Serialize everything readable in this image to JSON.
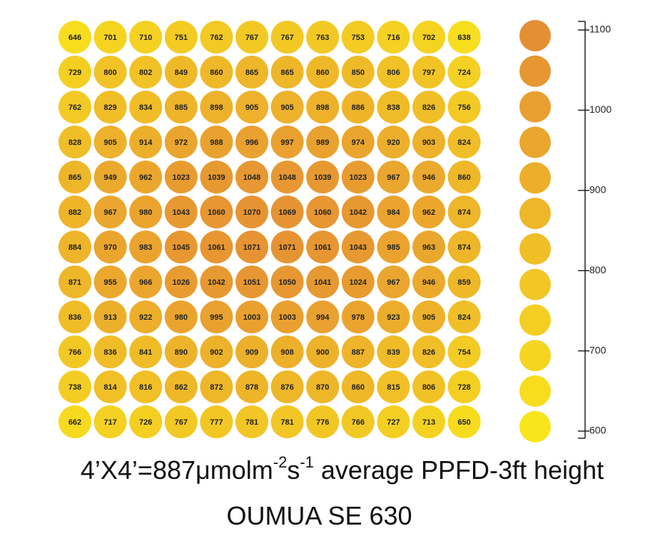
{
  "chart_data": {
    "type": "heatmap",
    "caption": [
      "4’X4’=887μmolm",
      "-2",
      "s",
      "-1",
      " average PPFD-3ft height"
    ],
    "title": "OUMUA SE 630",
    "values": [
      [
        646,
        701,
        710,
        751,
        762,
        767,
        767,
        763,
        753,
        716,
        702,
        638
      ],
      [
        729,
        800,
        802,
        849,
        860,
        865,
        865,
        860,
        850,
        806,
        797,
        724
      ],
      [
        762,
        829,
        834,
        885,
        898,
        905,
        905,
        898,
        886,
        838,
        826,
        756
      ],
      [
        828,
        905,
        914,
        972,
        988,
        996,
        997,
        989,
        974,
        920,
        903,
        824
      ],
      [
        865,
        949,
        962,
        1023,
        1039,
        1048,
        1048,
        1039,
        1023,
        967,
        946,
        860
      ],
      [
        882,
        967,
        980,
        1043,
        1060,
        1070,
        1069,
        1060,
        1042,
        984,
        962,
        874
      ],
      [
        884,
        970,
        983,
        1045,
        1061,
        1071,
        1071,
        1061,
        1043,
        985,
        963,
        874
      ],
      [
        871,
        955,
        966,
        1026,
        1042,
        1051,
        1050,
        1041,
        1024,
        967,
        946,
        859
      ],
      [
        836,
        913,
        922,
        980,
        995,
        1003,
        1003,
        994,
        978,
        923,
        905,
        824
      ],
      [
        766,
        836,
        841,
        890,
        902,
        909,
        908,
        900,
        887,
        839,
        826,
        754
      ],
      [
        738,
        814,
        816,
        862,
        872,
        878,
        876,
        870,
        860,
        815,
        806,
        728
      ],
      [
        662,
        717,
        726,
        767,
        777,
        781,
        781,
        776,
        766,
        727,
        713,
        650
      ]
    ],
    "colors": [
      "#f9e51c",
      "#e58f34"
    ],
    "zlim": [
      600,
      1100
    ],
    "zticks": [
      600,
      700,
      800,
      900,
      1000,
      1100
    ]
  }
}
